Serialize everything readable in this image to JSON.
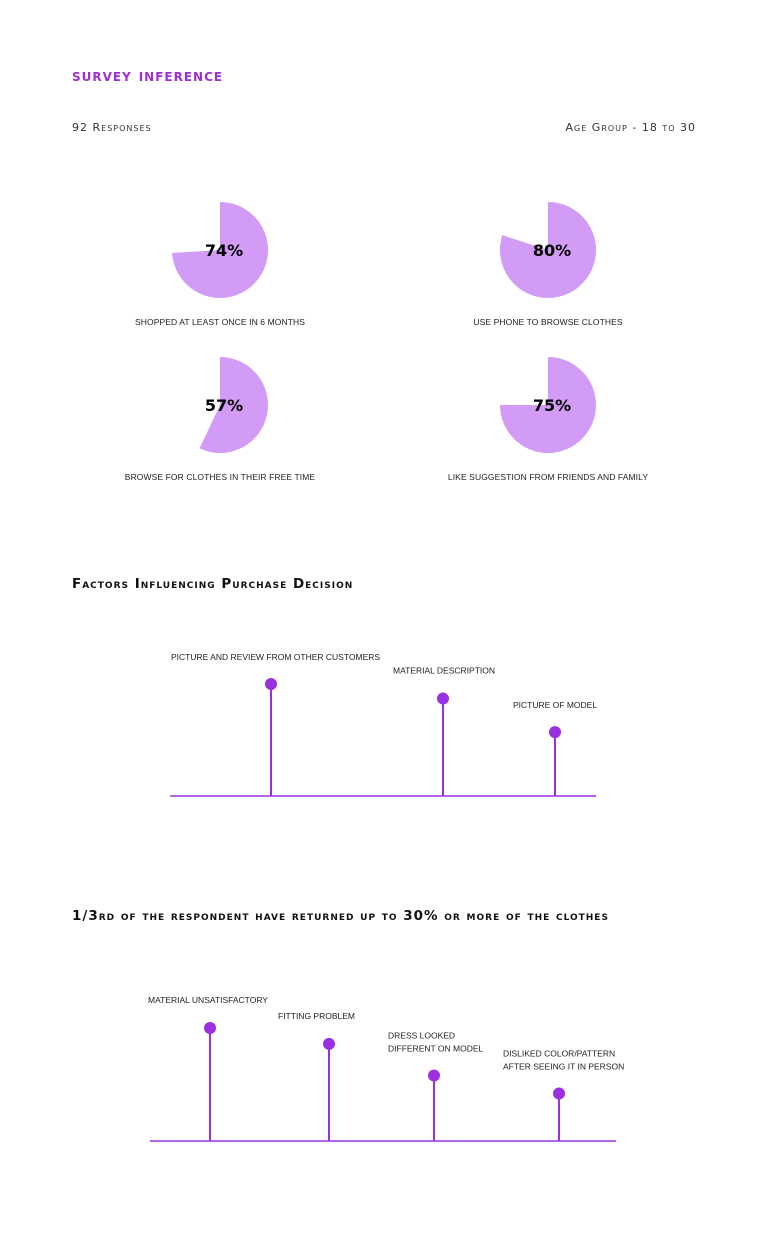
{
  "header": {
    "title": "survey inference",
    "responses": "92 Responses",
    "age_group": "Age Group - 18 to 30"
  },
  "colors": {
    "accent": "#a02ed6",
    "pie_fill": "#d29bf5",
    "stem": "#9b30e0"
  },
  "chart_data": [
    {
      "type": "pie",
      "values": [
        74
      ],
      "label": "74%",
      "caption": "SHOPPED AT LEAST ONCE IN 6 MONTHS"
    },
    {
      "type": "pie",
      "values": [
        80
      ],
      "label": "80%",
      "caption": "USE PHONE TO BROWSE CLOTHES"
    },
    {
      "type": "pie",
      "values": [
        57
      ],
      "label": "57%",
      "caption": "BROWSE FOR CLOTHES IN THEIR FREE TIME"
    },
    {
      "type": "pie",
      "values": [
        75
      ],
      "label": "75%",
      "caption": "LIKE SUGGESTION FROM FRIENDS  AND FAMILY"
    },
    {
      "type": "lollipop",
      "title": "Factors Influencing Purchase Decision",
      "categories": [
        [
          "PICTURE AND REVIEW FROM OTHER CUSTOMERS"
        ],
        [
          "MATERIAL DESCRIPTION"
        ],
        [
          "PICTURE OF MODEL"
        ]
      ],
      "values": [
        100,
        87,
        57
      ]
    },
    {
      "type": "lollipop",
      "title": "1/3rd of the respondent have returned up to 30% or more of the clothes",
      "categories": [
        [
          "MATERIAL UNSATISFACTORY"
        ],
        [
          "FITTING PROBLEM"
        ],
        [
          "DRESS LOOKED",
          "DIFFERENT ON MODEL"
        ],
        [
          "DISLIKED COLOR/PATTERN",
          "AFTER SEEING IT IN PERSON"
        ]
      ],
      "values": [
        100,
        86,
        58,
        42
      ]
    }
  ]
}
